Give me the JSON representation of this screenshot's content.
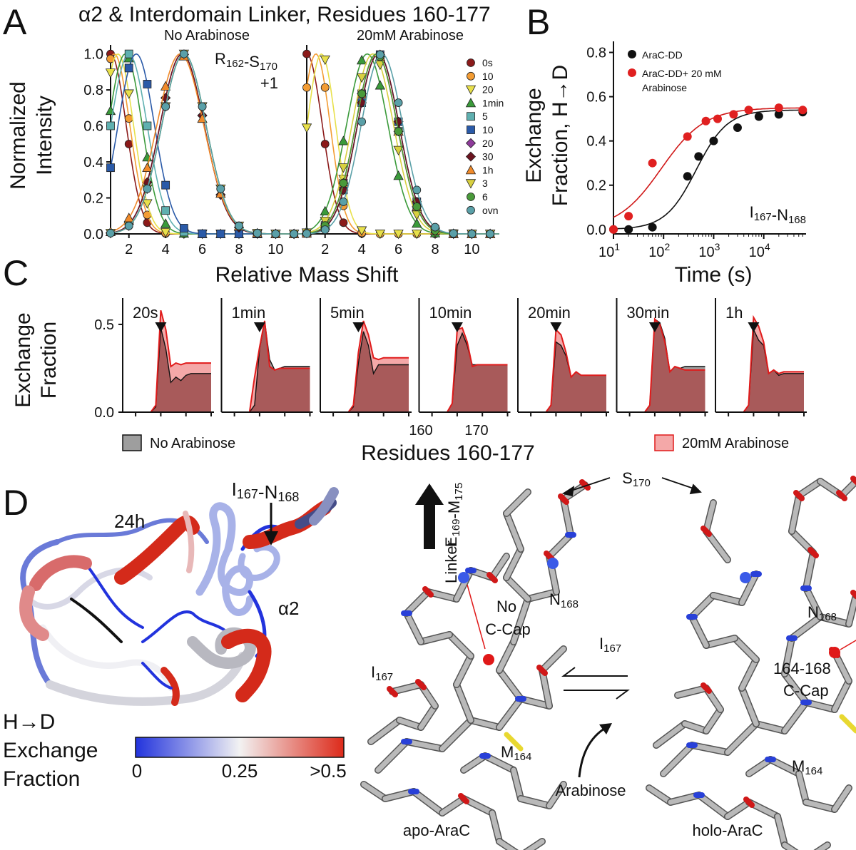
{
  "panel_labels": {
    "a": "A",
    "b": "B",
    "c": "C",
    "d": "D"
  },
  "panel_a": {
    "title": "α2 & Interdomain Linker, Residues 160-177",
    "ylabel_line1": "Normalized",
    "ylabel_line2": "Intensity",
    "xlabel": "Relative Mass Shift",
    "peptide_label": "R162-S170",
    "charge_label": "+1",
    "legend": [
      "0s",
      "10",
      "20",
      "1min",
      "5",
      "10",
      "20",
      "30",
      "1h",
      "3",
      "6",
      "ovn"
    ]
  },
  "panel_b": {
    "ylabel_line1": "Exchange",
    "ylabel_line2": "Fraction, H→D",
    "xlabel": "Time (s)",
    "peptide_label": "I167-N168",
    "legend": [
      "AraC-DD",
      "AraC-DD+ 20 mM",
      "Arabinose"
    ]
  },
  "panel_c": {
    "ylabel_line1": "Exchange",
    "ylabel_line2": "Fraction",
    "xlabel": "Residues 160-177",
    "tick_160": "160",
    "tick_170": "170",
    "legend_no": "No Arabinose",
    "legend_ara": "20mM Arabinose"
  },
  "panel_d": {
    "time_label": "24h",
    "peptide_label": "I167-N168",
    "helix_label": "α2",
    "linker_label": "Linker",
    "linker_range": "E169-M175",
    "s170": "S170",
    "n168_left": "N168",
    "n168_right": "N168",
    "i167_left": "I167",
    "i167_right": "I167",
    "m164_left": "M164",
    "m164_right": "M164",
    "no_ccap_line1": "No",
    "no_ccap_line2": "C-Cap",
    "ccap_line1": "164-168",
    "ccap_line2": "C-Cap",
    "arabinose": "Arabinose",
    "apo": "apo-AraC",
    "holo": "holo-AraC",
    "scale_title_line1": "H→D",
    "scale_title_line2": "Exchange",
    "scale_title_line3": "Fraction",
    "scale_min": "0",
    "scale_mid": "0.25",
    "scale_max": ">0.5"
  },
  "chart_data": [
    {
      "id": "A-left",
      "type": "line",
      "subtitle": "No Arabinose",
      "xlabel": "Relative Mass Shift",
      "ylabel": "Normalized Intensity",
      "xlim": [
        1,
        11.5
      ],
      "ylim": [
        0,
        1.05
      ],
      "x_ticks": [
        2,
        4,
        6,
        8,
        10
      ],
      "y_ticks": [
        0.0,
        0.2,
        0.4,
        0.6,
        0.8,
        1.0
      ],
      "series": [
        {
          "name": "0s",
          "color": "#8b1a1a",
          "marker": "circle",
          "center": 1.0,
          "width": 1.2
        },
        {
          "name": "10",
          "color": "#f39c33",
          "marker": "circle",
          "center": 1.2,
          "width": 1.2
        },
        {
          "name": "20",
          "color": "#e8e04a",
          "marker": "tri-down",
          "center": 1.4,
          "width": 1.2
        },
        {
          "name": "1min",
          "color": "#3a9a3a",
          "marker": "tri-up",
          "center": 1.8,
          "width": 1.3
        },
        {
          "name": "5",
          "color": "#5fb0b0",
          "marker": "square",
          "center": 2.0,
          "width": 1.4
        },
        {
          "name": "10",
          "color": "#2a5aa8",
          "marker": "square",
          "center": 2.4,
          "width": 1.4
        },
        {
          "name": "20",
          "color": "#8e3a9a",
          "marker": "diamond",
          "center": 4.9,
          "width": 1.7
        },
        {
          "name": "30",
          "color": "#6b1420",
          "marker": "diamond",
          "center": 4.9,
          "width": 1.7
        },
        {
          "name": "1h",
          "color": "#f08a2a",
          "marker": "tri-up",
          "center": 4.8,
          "width": 1.8
        },
        {
          "name": "3",
          "color": "#d8d040",
          "marker": "tri-down",
          "center": 5.0,
          "width": 1.7
        },
        {
          "name": "6",
          "color": "#4a9a3a",
          "marker": "circle",
          "center": 5.0,
          "width": 1.7
        },
        {
          "name": "ovn",
          "color": "#5aa0a8",
          "marker": "circle",
          "center": 5.0,
          "width": 1.7
        }
      ]
    },
    {
      "id": "A-right",
      "type": "line",
      "subtitle": "20mM Arabinose",
      "xlabel": "Relative Mass Shift",
      "ylabel": "Normalized Intensity",
      "xlim": [
        1,
        11.5
      ],
      "ylim": [
        0,
        1.05
      ],
      "x_ticks": [
        2,
        4,
        6,
        8,
        10
      ],
      "series": [
        {
          "name": "0s",
          "color": "#8b1a1a",
          "marker": "circle",
          "center": 1.0,
          "width": 1.2
        },
        {
          "name": "10",
          "color": "#f39c33",
          "marker": "circle",
          "center": 1.5,
          "width": 1.1
        },
        {
          "name": "20",
          "color": "#e8e04a",
          "marker": "tri-down",
          "center": 1.8,
          "width": 1.1
        },
        {
          "name": "1min",
          "color": "#3a9a3a",
          "marker": "tri-up",
          "center": 4.3,
          "width": 1.6
        },
        {
          "name": "5",
          "color": "#5fb0b0",
          "marker": "square",
          "center": 4.8,
          "width": 1.6
        },
        {
          "name": "10",
          "color": "#2a5aa8",
          "marker": "square",
          "center": 4.9,
          "width": 1.6
        },
        {
          "name": "20",
          "color": "#8e3a9a",
          "marker": "diamond",
          "center": 4.8,
          "width": 1.6
        },
        {
          "name": "30",
          "color": "#6b1420",
          "marker": "diamond",
          "center": 4.9,
          "width": 1.6
        },
        {
          "name": "1h",
          "color": "#f08a2a",
          "marker": "tri-up",
          "center": 4.8,
          "width": 1.6
        },
        {
          "name": "3",
          "color": "#d8d040",
          "marker": "tri-down",
          "center": 4.6,
          "width": 1.6
        },
        {
          "name": "6",
          "color": "#4a9a3a",
          "marker": "circle",
          "center": 4.8,
          "width": 1.6
        },
        {
          "name": "ovn",
          "color": "#5aa0a8",
          "marker": "circle",
          "center": 5.1,
          "width": 1.6
        }
      ]
    },
    {
      "id": "B",
      "type": "scatter",
      "xlabel": "Time (s)",
      "ylabel": "Exchange Fraction, H→D",
      "xscale": "log",
      "xlim": [
        10,
        70000
      ],
      "ylim": [
        -0.02,
        0.85
      ],
      "x_ticks": [
        10,
        100,
        1000,
        10000
      ],
      "x_tick_labels": [
        [
          "10",
          "1"
        ],
        [
          "10",
          "2"
        ],
        [
          "10",
          "3"
        ],
        [
          "10",
          "4"
        ]
      ],
      "y_ticks": [
        0.0,
        0.2,
        0.4,
        0.6,
        0.8
      ],
      "series": [
        {
          "name": "AraC-DD",
          "color": "#111111",
          "x": [
            10,
            20,
            60,
            300,
            500,
            1000,
            3000,
            8000,
            20000,
            60000
          ],
          "y": [
            0.0,
            0.0,
            0.01,
            0.24,
            0.33,
            0.4,
            0.46,
            0.51,
            0.52,
            0.53
          ],
          "fit": {
            "ymax": 0.54,
            "x50": 450,
            "n": 1.4
          }
        },
        {
          "name": "AraC-DD+ 20 mM Arabinose",
          "color": "#e02020",
          "x": [
            10,
            20,
            60,
            300,
            700,
            1200,
            2500,
            5000,
            20000,
            60000
          ],
          "y": [
            0.0,
            0.06,
            0.3,
            0.42,
            0.49,
            0.5,
            0.52,
            0.54,
            0.55,
            0.54
          ],
          "fit": {
            "ymax": 0.55,
            "x50": 90,
            "n": 1.0
          }
        }
      ]
    },
    {
      "id": "C",
      "type": "area",
      "xlabel": "Residues 160-177",
      "ylabel": "Exchange Fraction",
      "ylim": [
        0,
        0.65
      ],
      "y_ticks": [
        0.0,
        0.5
      ],
      "y_tick_labels": [
        "0.0",
        "0.5"
      ],
      "residues": [
        160,
        161,
        162,
        163,
        164,
        165,
        166,
        167,
        168,
        169,
        170,
        171,
        172,
        173,
        174,
        175,
        176,
        177
      ],
      "panels": [
        {
          "label": "20s",
          "no": [
            0,
            0,
            0,
            0,
            0,
            0,
            0.03,
            0.48,
            0.36,
            0.17,
            0.2,
            0.18,
            0.21,
            0.22,
            0.22,
            0.22,
            0.22,
            0.22
          ],
          "ara": [
            0,
            0,
            0,
            0,
            0,
            0,
            0.04,
            0.58,
            0.47,
            0.26,
            0.28,
            0.27,
            0.28,
            0.28,
            0.28,
            0.28,
            0.28,
            0.28
          ]
        },
        {
          "label": "1min",
          "no": [
            0,
            0,
            0,
            0,
            0,
            0,
            0.04,
            0.36,
            0.52,
            0.3,
            0.24,
            0.25,
            0.26,
            0.26,
            0.26,
            0.26,
            0.26,
            0.26
          ],
          "ara": [
            0,
            0,
            0,
            0,
            0,
            0,
            0.2,
            0.37,
            0.52,
            0.26,
            0.24,
            0.25,
            0.25,
            0.25,
            0.25,
            0.25,
            0.25,
            0.25
          ]
        },
        {
          "label": "5min",
          "no": [
            0,
            0,
            0,
            0,
            0,
            0,
            0.03,
            0.28,
            0.46,
            0.38,
            0.22,
            0.27,
            0.27,
            0.27,
            0.27,
            0.27,
            0.27,
            0.27
          ],
          "ara": [
            0,
            0,
            0,
            0,
            0,
            0,
            0.04,
            0.34,
            0.52,
            0.44,
            0.31,
            0.3,
            0.31,
            0.31,
            0.31,
            0.31,
            0.31,
            0.31
          ]
        },
        {
          "label": "10min",
          "no": [
            0,
            0,
            0,
            0,
            0,
            0,
            0.05,
            0.38,
            0.45,
            0.38,
            0.27,
            0.27,
            0.27,
            0.27,
            0.27,
            0.27,
            0.27,
            0.27
          ],
          "ara": [
            0,
            0,
            0,
            0,
            0,
            0,
            0.05,
            0.47,
            0.48,
            0.4,
            0.26,
            0.27,
            0.27,
            0.27,
            0.27,
            0.27,
            0.27,
            0.27
          ]
        },
        {
          "label": "20min",
          "no": [
            0,
            0,
            0,
            0,
            0,
            0,
            0.04,
            0.4,
            0.38,
            0.32,
            0.2,
            0.23,
            0.21,
            0.21,
            0.21,
            0.21,
            0.21,
            0.21
          ],
          "ara": [
            0,
            0,
            0,
            0,
            0,
            0,
            0.04,
            0.47,
            0.44,
            0.34,
            0.2,
            0.23,
            0.21,
            0.21,
            0.21,
            0.21,
            0.21,
            0.21
          ]
        },
        {
          "label": "30min",
          "no": [
            0,
            0,
            0,
            0,
            0,
            0,
            0.04,
            0.53,
            0.51,
            0.42,
            0.23,
            0.26,
            0.25,
            0.26,
            0.26,
            0.26,
            0.26,
            0.26
          ],
          "ara": [
            0,
            0,
            0,
            0,
            0,
            0,
            0.04,
            0.53,
            0.5,
            0.4,
            0.23,
            0.26,
            0.25,
            0.24,
            0.24,
            0.24,
            0.24,
            0.24
          ]
        },
        {
          "label": "1h",
          "no": [
            0,
            0,
            0,
            0,
            0,
            0,
            0.04,
            0.47,
            0.41,
            0.38,
            0.22,
            0.24,
            0.21,
            0.22,
            0.22,
            0.22,
            0.22,
            0.22
          ],
          "ara": [
            0,
            0,
            0,
            0,
            0,
            0,
            0.04,
            0.54,
            0.49,
            0.4,
            0.22,
            0.24,
            0.22,
            0.23,
            0.23,
            0.23,
            0.23,
            0.23
          ]
        }
      ]
    }
  ],
  "colors": {
    "no_fill": "#9e9e9e",
    "ara_fill": "#f4a8a8",
    "overlap_fill": "#a85a5a",
    "ara_line": "#e01b1b",
    "scale_low": "#2233dd",
    "scale_mid": "#f2f2f2",
    "scale_high": "#dd2a1a"
  }
}
